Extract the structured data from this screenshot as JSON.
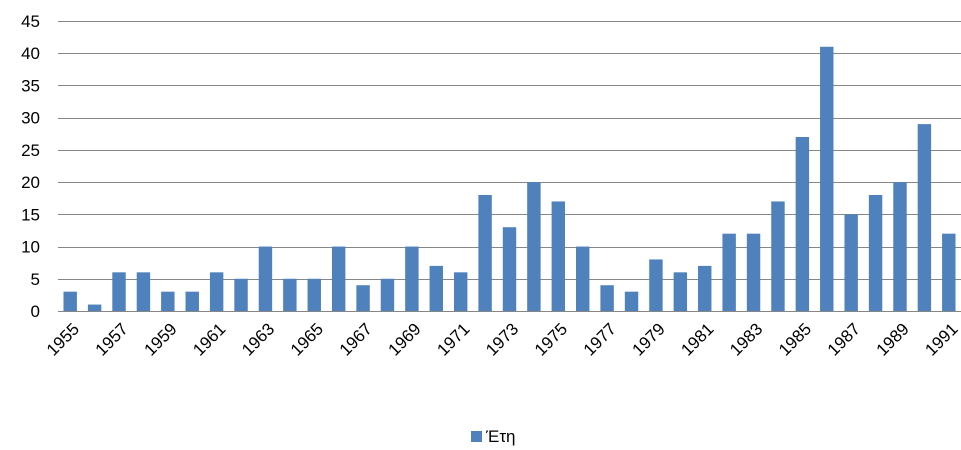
{
  "chart_data": {
    "type": "bar",
    "categories": [
      "1955",
      "1956",
      "1957",
      "1958",
      "1959",
      "1960",
      "1961",
      "1962",
      "1963",
      "1964",
      "1965",
      "1966",
      "1967",
      "1968",
      "1969",
      "1970",
      "1971",
      "1972",
      "1973",
      "1974",
      "1975",
      "1976",
      "1977",
      "1978",
      "1979",
      "1980",
      "1981",
      "1982",
      "1983",
      "1984",
      "1985",
      "1986",
      "1987",
      "1988",
      "1989",
      "1990",
      "1991"
    ],
    "x_tick_labels": [
      "1955",
      "1957",
      "1959",
      "1961",
      "1963",
      "1965",
      "1967",
      "1969",
      "1971",
      "1973",
      "1975",
      "1977",
      "1979",
      "1981",
      "1983",
      "1985",
      "1987",
      "1989",
      "1991"
    ],
    "series": [
      {
        "name": "Έτη",
        "values": [
          3,
          1,
          6,
          6,
          3,
          3,
          6,
          5,
          10,
          5,
          5,
          10,
          4,
          5,
          10,
          7,
          6,
          18,
          13,
          20,
          17,
          10,
          4,
          3,
          8,
          6,
          7,
          12,
          12,
          17,
          27,
          41,
          15,
          18,
          20,
          29,
          12
        ]
      }
    ],
    "ylim": [
      0,
      45
    ],
    "y_ticks": [
      0,
      5,
      10,
      15,
      20,
      25,
      30,
      35,
      40,
      45
    ],
    "grid": true,
    "legend_position": "bottom",
    "bar_color": "#4f81bd",
    "grid_color": "#868686"
  }
}
